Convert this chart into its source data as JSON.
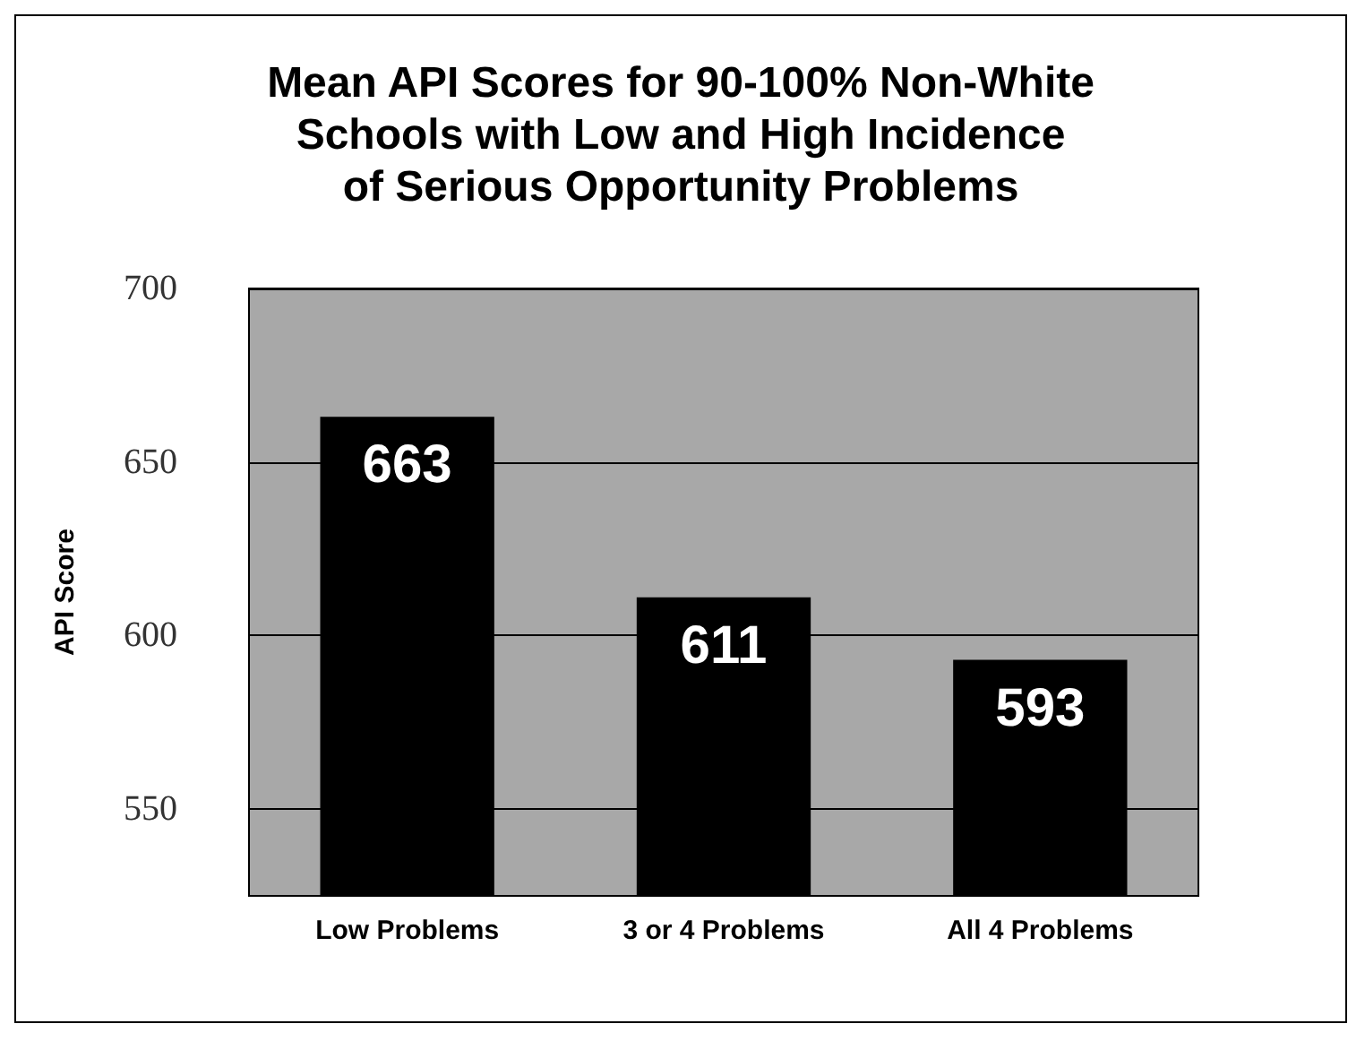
{
  "chart_data": {
    "type": "bar",
    "title": "Mean API Scores for 90-100% Non-White\nSchools with Low and High Incidence\nof Serious Opportunity Problems",
    "ylabel": "API Score",
    "categories": [
      "Low Problems",
      "3 or 4 Problems",
      "All 4 Problems"
    ],
    "values": [
      663,
      611,
      593
    ],
    "color": "#000000",
    "ylim": [
      525,
      700
    ],
    "yticks": [
      550,
      600,
      650,
      700
    ],
    "grid": "y",
    "data_labels": true
  }
}
